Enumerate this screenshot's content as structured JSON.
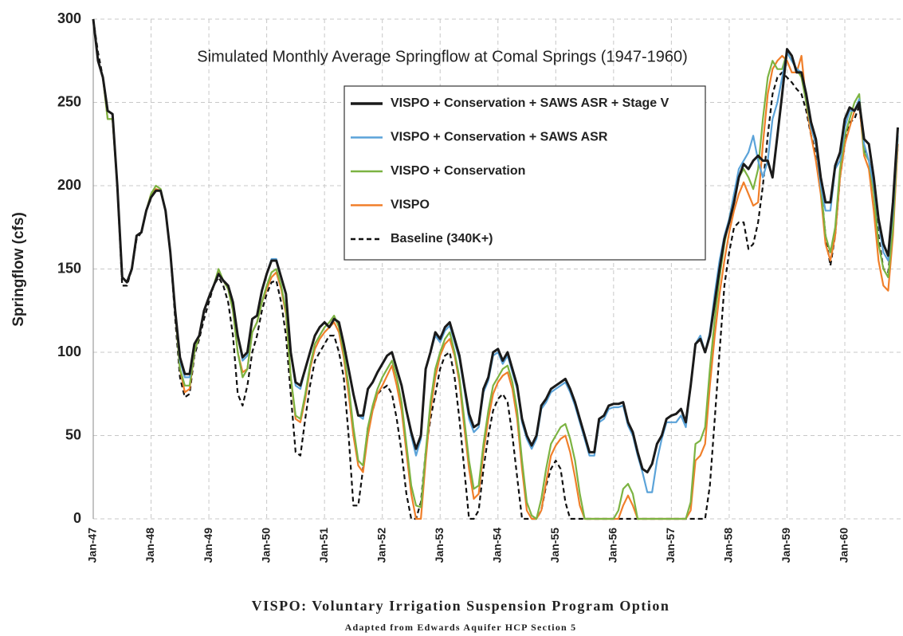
{
  "chart_data": {
    "type": "line",
    "title": "Simulated Monthly Average Springflow at Comal Springs (1947-1960)",
    "y_label": "Springflow (cfs)",
    "caption": "VISPO: Voluntary Irrigation Suspension Program Option",
    "source": "Adapted from Edwards Aquifer HCP Section 5",
    "categories": [
      "Jan-47",
      null,
      null,
      null,
      null,
      null,
      null,
      null,
      null,
      null,
      null,
      null,
      "Jan-48",
      null,
      null,
      null,
      null,
      null,
      null,
      null,
      null,
      null,
      null,
      null,
      "Jan-49",
      null,
      null,
      null,
      null,
      null,
      null,
      null,
      null,
      null,
      null,
      null,
      "Jan-50",
      null,
      null,
      null,
      null,
      null,
      null,
      null,
      null,
      null,
      null,
      null,
      "Jan-51",
      null,
      null,
      null,
      null,
      null,
      null,
      null,
      null,
      null,
      null,
      null,
      "Jan-52",
      null,
      null,
      null,
      null,
      null,
      null,
      null,
      null,
      null,
      null,
      null,
      "Jan-53",
      null,
      null,
      null,
      null,
      null,
      null,
      null,
      null,
      null,
      null,
      null,
      "Jan-54",
      null,
      null,
      null,
      null,
      null,
      null,
      null,
      null,
      null,
      null,
      null,
      "Jan-55",
      null,
      null,
      null,
      null,
      null,
      null,
      null,
      null,
      null,
      null,
      null,
      "Jan-56",
      null,
      null,
      null,
      null,
      null,
      null,
      null,
      null,
      null,
      null,
      null,
      "Jan-57",
      null,
      null,
      null,
      null,
      null,
      null,
      null,
      null,
      null,
      null,
      null,
      "Jan-58",
      null,
      null,
      null,
      null,
      null,
      null,
      null,
      null,
      null,
      null,
      null,
      "Jan-59",
      null,
      null,
      null,
      null,
      null,
      null,
      null,
      null,
      null,
      null,
      null,
      "Jan-60",
      null,
      null,
      null,
      null,
      null,
      null,
      null,
      null,
      null,
      null,
      null
    ],
    "series": [
      {
        "name": "VISPO + Conservation + SAWS ASR + Stage V",
        "color": "#1a1a1a",
        "line_style": "solid",
        "values": [
          300,
          275,
          265,
          245,
          243,
          200,
          145,
          142,
          150,
          170,
          172,
          185,
          193,
          197,
          197,
          185,
          160,
          125,
          97,
          87,
          87,
          105,
          110,
          125,
          133,
          140,
          147,
          143,
          140,
          130,
          110,
          97,
          100,
          120,
          122,
          137,
          147,
          155,
          155,
          145,
          135,
          100,
          82,
          80,
          90,
          100,
          110,
          115,
          118,
          115,
          120,
          118,
          105,
          90,
          75,
          62,
          62,
          78,
          82,
          88,
          93,
          98,
          100,
          90,
          80,
          65,
          52,
          42,
          50,
          90,
          100,
          112,
          108,
          115,
          118,
          108,
          98,
          80,
          63,
          55,
          57,
          78,
          85,
          100,
          102,
          95,
          100,
          90,
          80,
          60,
          50,
          44,
          50,
          68,
          72,
          78,
          80,
          82,
          84,
          78,
          70,
          60,
          50,
          40,
          40,
          60,
          62,
          68,
          69,
          69,
          70,
          58,
          52,
          40,
          30,
          28,
          33,
          45,
          50,
          60,
          62,
          63,
          66,
          58,
          80,
          105,
          108,
          100,
          110,
          130,
          150,
          168,
          178,
          190,
          205,
          213,
          210,
          215,
          218,
          215,
          215,
          205,
          230,
          255,
          282,
          278,
          268,
          268,
          255,
          238,
          228,
          205,
          190,
          190,
          212,
          220,
          240,
          247,
          245,
          250,
          228,
          225,
          205,
          180,
          165,
          158,
          190,
          235
        ]
      },
      {
        "name": "VISPO + Conservation + SAWS ASR",
        "color": "#5ba3d9",
        "line_style": "solid",
        "values": [
          300,
          275,
          265,
          245,
          243,
          200,
          145,
          142,
          150,
          170,
          172,
          185,
          193,
          197,
          197,
          185,
          160,
          125,
          95,
          85,
          85,
          105,
          110,
          125,
          133,
          140,
          147,
          143,
          140,
          130,
          110,
          95,
          98,
          120,
          122,
          137,
          147,
          156,
          156,
          145,
          135,
          100,
          80,
          78,
          90,
          100,
          110,
          115,
          118,
          115,
          120,
          118,
          105,
          90,
          75,
          62,
          60,
          78,
          82,
          88,
          93,
          98,
          100,
          90,
          80,
          65,
          50,
          38,
          48,
          90,
          100,
          110,
          106,
          113,
          116,
          106,
          96,
          78,
          60,
          52,
          55,
          76,
          83,
          98,
          100,
          93,
          98,
          88,
          78,
          58,
          48,
          42,
          48,
          66,
          70,
          76,
          78,
          80,
          82,
          76,
          68,
          58,
          48,
          38,
          38,
          58,
          60,
          66,
          67,
          67,
          68,
          56,
          50,
          38,
          28,
          16,
          16,
          35,
          48,
          58,
          58,
          58,
          62,
          55,
          80,
          105,
          110,
          100,
          112,
          135,
          155,
          170,
          180,
          195,
          210,
          215,
          220,
          230,
          215,
          205,
          215,
          240,
          250,
          265,
          280,
          275,
          270,
          268,
          255,
          235,
          225,
          200,
          185,
          185,
          210,
          215,
          235,
          245,
          245,
          252,
          225,
          215,
          200,
          178,
          160,
          155,
          185,
          230
        ]
      },
      {
        "name": "VISPO + Conservation",
        "color": "#7cb342",
        "line_style": "solid",
        "values": [
          300,
          275,
          265,
          240,
          240,
          200,
          145,
          142,
          150,
          170,
          172,
          185,
          195,
          200,
          198,
          185,
          160,
          125,
          90,
          80,
          80,
          100,
          110,
          125,
          133,
          140,
          150,
          143,
          138,
          125,
          100,
          85,
          90,
          112,
          118,
          130,
          140,
          148,
          150,
          140,
          125,
          85,
          62,
          60,
          75,
          92,
          105,
          110,
          115,
          118,
          122,
          115,
          100,
          80,
          55,
          35,
          32,
          55,
          68,
          78,
          85,
          90,
          95,
          85,
          70,
          45,
          20,
          8,
          7,
          40,
          70,
          90,
          100,
          108,
          112,
          100,
          85,
          60,
          35,
          18,
          20,
          45,
          65,
          80,
          85,
          90,
          92,
          82,
          65,
          35,
          10,
          2,
          0,
          12,
          30,
          45,
          50,
          55,
          57,
          48,
          35,
          15,
          0,
          0,
          0,
          0,
          0,
          0,
          0,
          5,
          18,
          21,
          15,
          0,
          0,
          0,
          0,
          0,
          0,
          0,
          0,
          0,
          0,
          0,
          10,
          45,
          47,
          55,
          90,
          120,
          145,
          165,
          180,
          195,
          205,
          210,
          205,
          198,
          210,
          240,
          265,
          275,
          270,
          270,
          280,
          275,
          270,
          265,
          250,
          235,
          225,
          200,
          170,
          160,
          175,
          210,
          230,
          240,
          250,
          255,
          220,
          215,
          195,
          165,
          150,
          145,
          175,
          230
        ]
      },
      {
        "name": "VISPO",
        "color": "#f07f2a",
        "line_style": "solid",
        "values": [
          300,
          275,
          265,
          240,
          240,
          200,
          145,
          142,
          150,
          170,
          172,
          185,
          195,
          198,
          197,
          185,
          160,
          125,
          90,
          76,
          78,
          100,
          110,
          125,
          133,
          140,
          148,
          143,
          138,
          125,
          100,
          88,
          90,
          112,
          118,
          130,
          138,
          145,
          148,
          138,
          123,
          85,
          60,
          58,
          72,
          90,
          102,
          108,
          112,
          115,
          118,
          112,
          97,
          75,
          50,
          32,
          28,
          50,
          65,
          75,
          80,
          86,
          92,
          80,
          65,
          40,
          15,
          0,
          0,
          35,
          65,
          85,
          98,
          105,
          108,
          98,
          82,
          55,
          30,
          12,
          15,
          40,
          60,
          75,
          82,
          86,
          88,
          78,
          60,
          30,
          5,
          0,
          0,
          5,
          22,
          38,
          44,
          48,
          50,
          40,
          25,
          8,
          0,
          0,
          0,
          0,
          0,
          0,
          0,
          0,
          8,
          14,
          8,
          0,
          0,
          0,
          0,
          0,
          0,
          0,
          0,
          0,
          0,
          0,
          5,
          35,
          38,
          45,
          80,
          110,
          135,
          155,
          172,
          185,
          195,
          202,
          195,
          188,
          190,
          225,
          255,
          270,
          275,
          278,
          275,
          268,
          268,
          278,
          250,
          230,
          215,
          195,
          165,
          155,
          170,
          205,
          225,
          235,
          245,
          250,
          218,
          210,
          185,
          155,
          140,
          137,
          170,
          225
        ]
      },
      {
        "name": "Baseline (340K+)",
        "color": "#111111",
        "line_style": "dashed",
        "values": [
          300,
          280,
          265,
          245,
          243,
          200,
          140,
          140,
          150,
          168,
          172,
          185,
          193,
          197,
          197,
          185,
          160,
          120,
          85,
          73,
          75,
          98,
          108,
          120,
          130,
          140,
          145,
          140,
          130,
          110,
          75,
          68,
          80,
          100,
          110,
          125,
          135,
          142,
          143,
          130,
          110,
          75,
          40,
          38,
          60,
          80,
          95,
          100,
          105,
          110,
          110,
          100,
          85,
          50,
          8,
          8,
          30,
          55,
          65,
          75,
          78,
          80,
          75,
          60,
          40,
          15,
          0,
          0,
          10,
          40,
          60,
          75,
          90,
          98,
          100,
          85,
          60,
          30,
          0,
          0,
          5,
          30,
          50,
          65,
          72,
          75,
          70,
          50,
          25,
          0,
          0,
          0,
          0,
          5,
          20,
          30,
          35,
          30,
          10,
          0,
          0,
          0,
          0,
          0,
          0,
          0,
          0,
          0,
          0,
          0,
          0,
          0,
          0,
          0,
          0,
          0,
          0,
          0,
          0,
          0,
          0,
          0,
          0,
          0,
          0,
          0,
          0,
          0,
          20,
          60,
          100,
          140,
          160,
          175,
          178,
          178,
          162,
          165,
          178,
          200,
          230,
          255,
          265,
          268,
          265,
          262,
          258,
          255,
          245,
          230,
          220,
          200,
          170,
          152,
          170,
          205,
          225,
          238,
          240,
          248,
          222,
          215,
          200,
          170,
          150,
          148,
          175,
          225
        ]
      }
    ],
    "ylim": [
      0,
      300
    ],
    "yticks": [
      0,
      50,
      100,
      150,
      200,
      250,
      300
    ],
    "grid": true,
    "legend": "upper center"
  }
}
